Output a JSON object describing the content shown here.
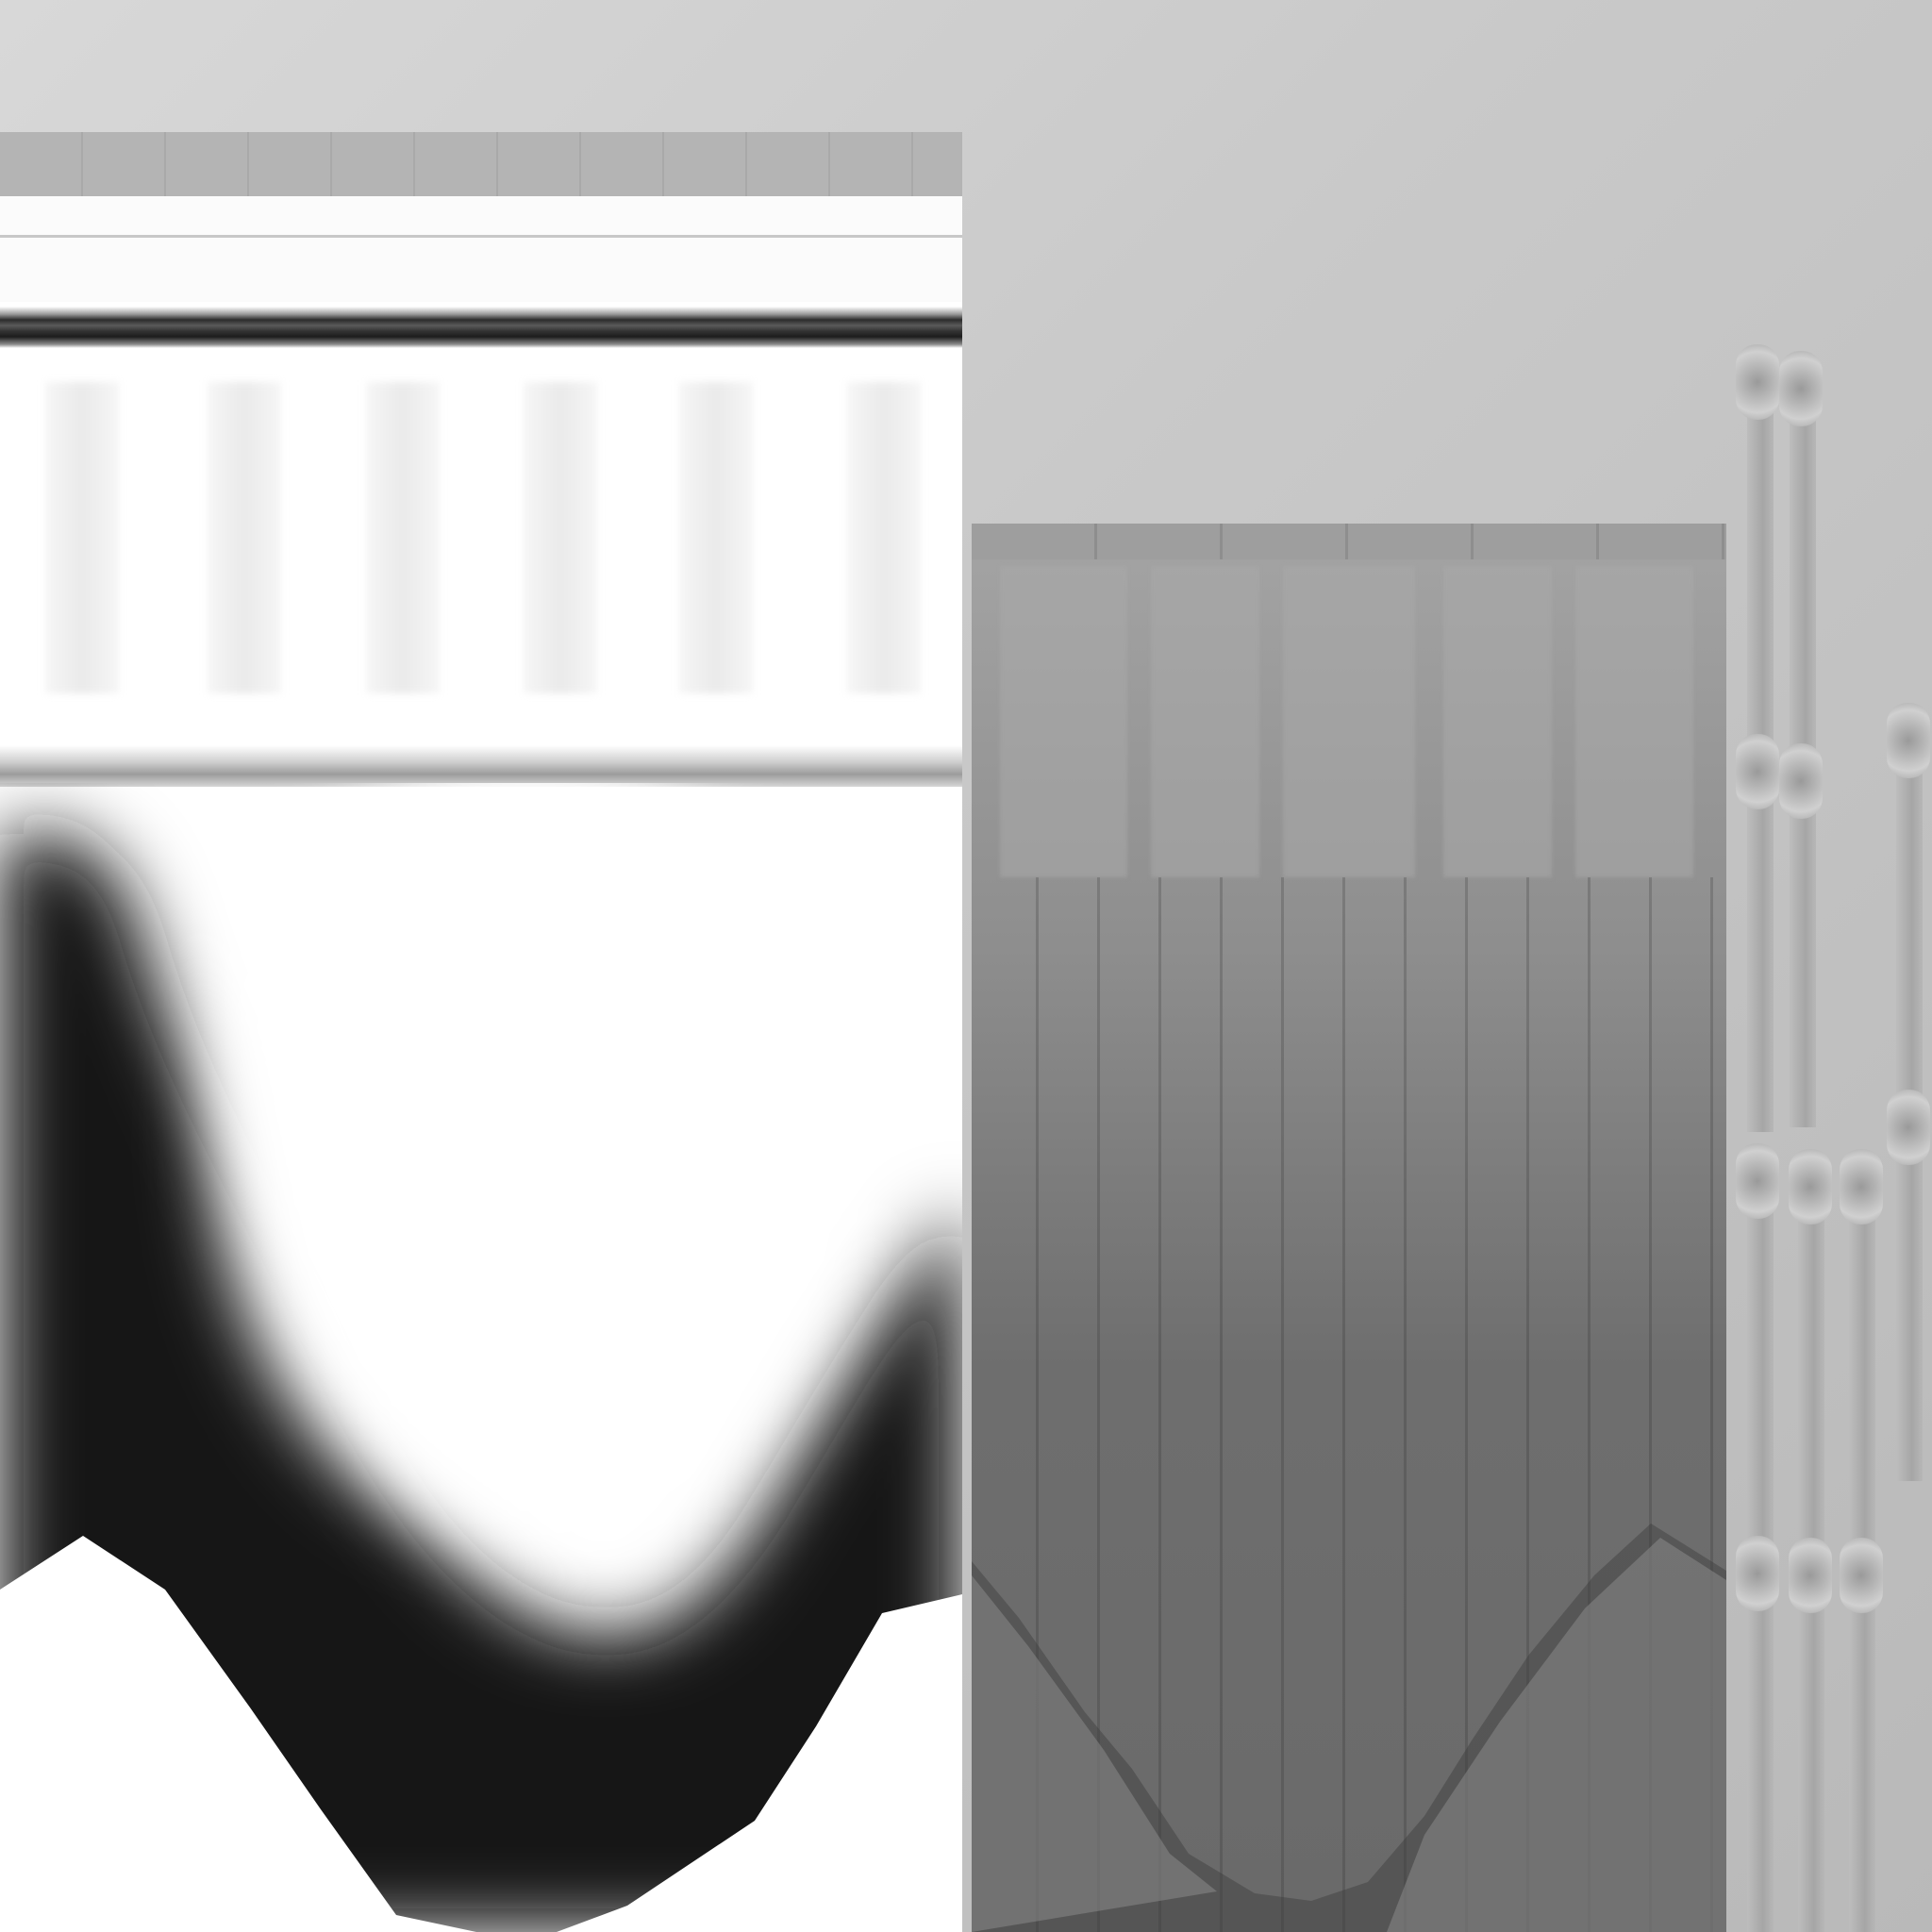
{
  "texture": {
    "style": "grayscale-gradient-texture",
    "left_panel": {
      "column_count": 6
    },
    "middle_panel": {
      "block_count": 5,
      "line_count": 12
    },
    "pillars": {
      "count": 6
    },
    "colors": {
      "dark": "#141414",
      "mid": "#6a6a6a",
      "light": "#ffffff",
      "background": "#c9c9c9"
    }
  }
}
